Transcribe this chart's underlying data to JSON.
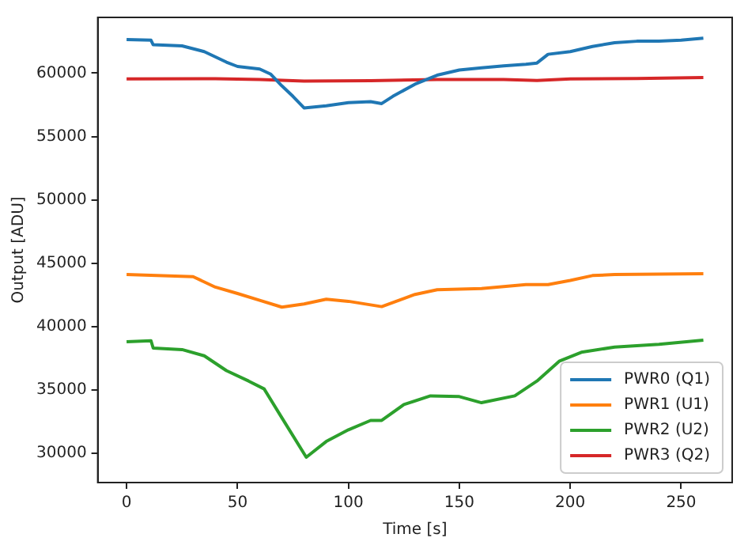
{
  "chart_data": {
    "type": "line",
    "xlabel": "Time [s]",
    "ylabel": "Output [ADU]",
    "xlim": [
      -13,
      273
    ],
    "ylim": [
      27700,
      64400
    ],
    "xticks": [
      0,
      50,
      100,
      150,
      200,
      250
    ],
    "yticks": [
      30000,
      35000,
      40000,
      45000,
      50000,
      55000,
      60000
    ],
    "grid": false,
    "legend": "bottom right",
    "marker": "none",
    "line_style": "solid",
    "series": [
      {
        "name": "PWR0 (Q1)",
        "color": "#1f77b4",
        "x": [
          0,
          11,
          12,
          25,
          35,
          45,
          50,
          60,
          65,
          70,
          75,
          80,
          90,
          100,
          110,
          115,
          120,
          130,
          140,
          150,
          160,
          170,
          180,
          185,
          190,
          200,
          210,
          220,
          230,
          240,
          250,
          260
        ],
        "values": [
          62650,
          62600,
          62240,
          62150,
          61700,
          60870,
          60530,
          60330,
          59920,
          59000,
          58170,
          57260,
          57430,
          57680,
          57750,
          57600,
          58170,
          59130,
          59840,
          60250,
          60420,
          60580,
          60700,
          60800,
          61490,
          61700,
          62110,
          62400,
          62520,
          62520,
          62600,
          62760
        ]
      },
      {
        "name": "PWR1 (U1)",
        "color": "#ff7f0e",
        "x": [
          0,
          30,
          40,
          50,
          60,
          70,
          80,
          90,
          100,
          115,
          130,
          140,
          160,
          180,
          190,
          200,
          210,
          220,
          260
        ],
        "values": [
          44110,
          43940,
          43120,
          42620,
          42080,
          41540,
          41790,
          42160,
          42000,
          41580,
          42540,
          42910,
          43000,
          43320,
          43320,
          43650,
          44030,
          44110,
          44180
        ]
      },
      {
        "name": "PWR2 (U2)",
        "color": "#2ca02c",
        "x": [
          0,
          11,
          12,
          25,
          35,
          45,
          55,
          62,
          70,
          81,
          90,
          100,
          110,
          115,
          125,
          137,
          150,
          160,
          175,
          185,
          195,
          205,
          220,
          240,
          260
        ],
        "values": [
          38810,
          38890,
          38310,
          38190,
          37700,
          36530,
          35710,
          35090,
          32810,
          29700,
          30940,
          31860,
          32600,
          32600,
          33850,
          34540,
          34480,
          34000,
          34540,
          35710,
          37270,
          37980,
          38390,
          38600,
          38930
        ]
      },
      {
        "name": "PWR3 (Q2)",
        "color": "#d62728",
        "x": [
          0,
          40,
          60,
          80,
          110,
          140,
          170,
          185,
          200,
          230,
          260
        ],
        "values": [
          59540,
          59560,
          59500,
          59380,
          59400,
          59500,
          59500,
          59420,
          59550,
          59580,
          59650
        ]
      }
    ]
  }
}
